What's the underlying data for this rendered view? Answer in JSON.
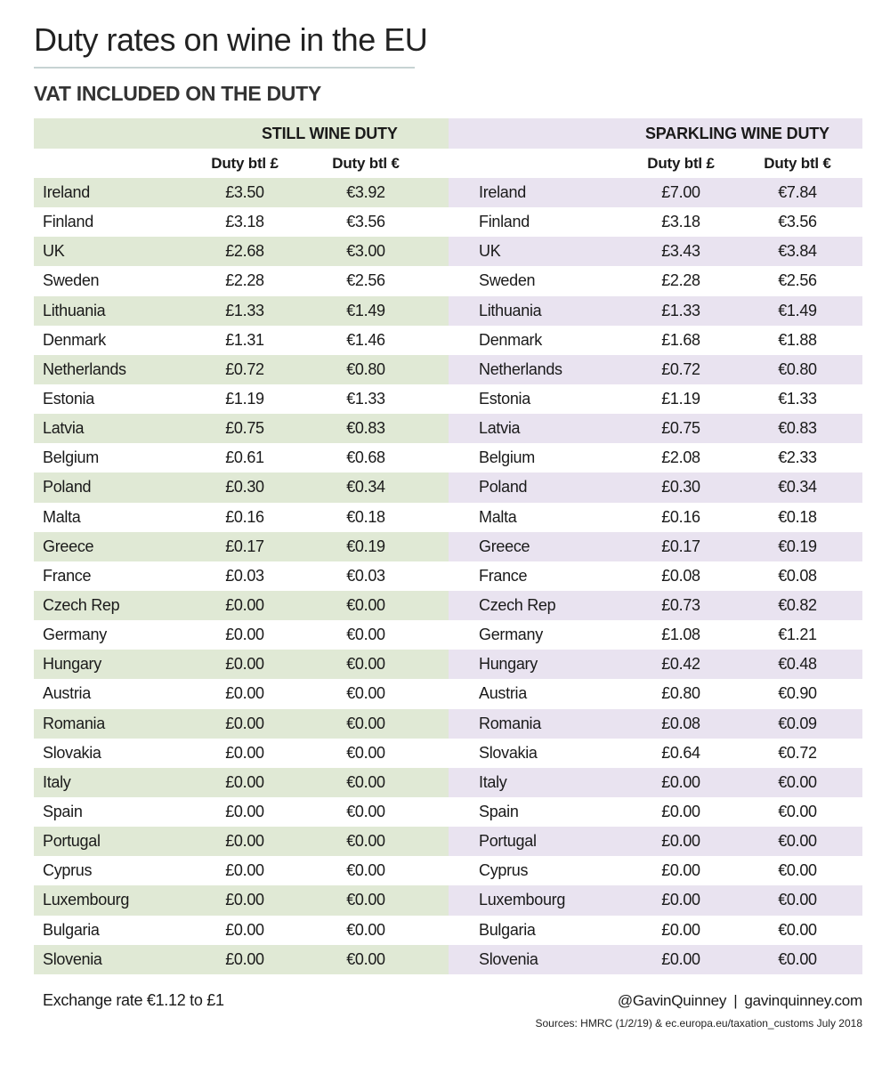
{
  "title": "Duty rates on wine in the EU",
  "subtitle": "VAT INCLUDED ON THE DUTY",
  "still": {
    "heading": "STILL WINE DUTY",
    "col_gbp": "Duty btl £",
    "col_eur": "Duty btl €",
    "rows": [
      {
        "country": "Ireland",
        "gbp": "£3.50",
        "eur": "€3.92"
      },
      {
        "country": "Finland",
        "gbp": "£3.18",
        "eur": "€3.56"
      },
      {
        "country": "UK",
        "gbp": "£2.68",
        "eur": "€3.00"
      },
      {
        "country": "Sweden",
        "gbp": "£2.28",
        "eur": "€2.56"
      },
      {
        "country": "Lithuania",
        "gbp": "£1.33",
        "eur": "€1.49"
      },
      {
        "country": "Denmark",
        "gbp": "£1.31",
        "eur": "€1.46"
      },
      {
        "country": "Netherlands",
        "gbp": "£0.72",
        "eur": "€0.80"
      },
      {
        "country": "Estonia",
        "gbp": "£1.19",
        "eur": "€1.33"
      },
      {
        "country": "Latvia",
        "gbp": "£0.75",
        "eur": "€0.83"
      },
      {
        "country": "Belgium",
        "gbp": "£0.61",
        "eur": "€0.68"
      },
      {
        "country": "Poland",
        "gbp": "£0.30",
        "eur": "€0.34"
      },
      {
        "country": "Malta",
        "gbp": "£0.16",
        "eur": "€0.18"
      },
      {
        "country": "Greece",
        "gbp": "£0.17",
        "eur": "€0.19"
      },
      {
        "country": "France",
        "gbp": "£0.03",
        "eur": "€0.03"
      },
      {
        "country": "Czech Rep",
        "gbp": "£0.00",
        "eur": "€0.00"
      },
      {
        "country": "Germany",
        "gbp": "£0.00",
        "eur": "€0.00"
      },
      {
        "country": "Hungary",
        "gbp": "£0.00",
        "eur": "€0.00"
      },
      {
        "country": "Austria",
        "gbp": "£0.00",
        "eur": "€0.00"
      },
      {
        "country": "Romania",
        "gbp": "£0.00",
        "eur": "€0.00"
      },
      {
        "country": "Slovakia",
        "gbp": "£0.00",
        "eur": "€0.00"
      },
      {
        "country": "Italy",
        "gbp": "£0.00",
        "eur": "€0.00"
      },
      {
        "country": "Spain",
        "gbp": "£0.00",
        "eur": "€0.00"
      },
      {
        "country": "Portugal",
        "gbp": "£0.00",
        "eur": "€0.00"
      },
      {
        "country": "Cyprus",
        "gbp": "£0.00",
        "eur": "€0.00"
      },
      {
        "country": "Luxembourg",
        "gbp": "£0.00",
        "eur": "€0.00"
      },
      {
        "country": "Bulgaria",
        "gbp": "£0.00",
        "eur": "€0.00"
      },
      {
        "country": "Slovenia",
        "gbp": "£0.00",
        "eur": "€0.00"
      }
    ]
  },
  "sparkling": {
    "heading": "SPARKLING WINE DUTY",
    "col_gbp": "Duty btl £",
    "col_eur": "Duty btl €",
    "rows": [
      {
        "country": "Ireland",
        "gbp": "£7.00",
        "eur": "€7.84"
      },
      {
        "country": "Finland",
        "gbp": "£3.18",
        "eur": "€3.56"
      },
      {
        "country": "UK",
        "gbp": "£3.43",
        "eur": "€3.84"
      },
      {
        "country": "Sweden",
        "gbp": "£2.28",
        "eur": "€2.56"
      },
      {
        "country": "Lithuania",
        "gbp": "£1.33",
        "eur": "€1.49"
      },
      {
        "country": "Denmark",
        "gbp": "£1.68",
        "eur": "€1.88"
      },
      {
        "country": "Netherlands",
        "gbp": "£0.72",
        "eur": "€0.80"
      },
      {
        "country": "Estonia",
        "gbp": "£1.19",
        "eur": "€1.33"
      },
      {
        "country": "Latvia",
        "gbp": "£0.75",
        "eur": "€0.83"
      },
      {
        "country": "Belgium",
        "gbp": "£2.08",
        "eur": "€2.33"
      },
      {
        "country": "Poland",
        "gbp": "£0.30",
        "eur": "€0.34"
      },
      {
        "country": "Malta",
        "gbp": "£0.16",
        "eur": "€0.18"
      },
      {
        "country": "Greece",
        "gbp": "£0.17",
        "eur": "€0.19"
      },
      {
        "country": "France",
        "gbp": "£0.08",
        "eur": "€0.08"
      },
      {
        "country": "Czech Rep",
        "gbp": "£0.73",
        "eur": "€0.82"
      },
      {
        "country": "Germany",
        "gbp": "£1.08",
        "eur": "€1.21"
      },
      {
        "country": "Hungary",
        "gbp": "£0.42",
        "eur": "€0.48"
      },
      {
        "country": "Austria",
        "gbp": "£0.80",
        "eur": "€0.90"
      },
      {
        "country": "Romania",
        "gbp": "£0.08",
        "eur": "€0.09"
      },
      {
        "country": "Slovakia",
        "gbp": "£0.64",
        "eur": "€0.72"
      },
      {
        "country": "Italy",
        "gbp": "£0.00",
        "eur": "€0.00"
      },
      {
        "country": "Spain",
        "gbp": "£0.00",
        "eur": "€0.00"
      },
      {
        "country": "Portugal",
        "gbp": "£0.00",
        "eur": "€0.00"
      },
      {
        "country": "Cyprus",
        "gbp": "£0.00",
        "eur": "€0.00"
      },
      {
        "country": "Luxembourg",
        "gbp": "£0.00",
        "eur": "€0.00"
      },
      {
        "country": "Bulgaria",
        "gbp": "£0.00",
        "eur": "€0.00"
      },
      {
        "country": "Slovenia",
        "gbp": "£0.00",
        "eur": "€0.00"
      }
    ]
  },
  "colors": {
    "still_band": "#e0e9d5",
    "sparkling_band": "#e9e3f0"
  },
  "footer": {
    "exchange": "Exchange rate €1.12 to £1",
    "handle": "@GavinQuinney",
    "separator": "|",
    "website": "gavinquinney.com",
    "sources": "Sources: HMRC (1/2/19) & ec.europa.eu/taxation_customs July 2018"
  }
}
